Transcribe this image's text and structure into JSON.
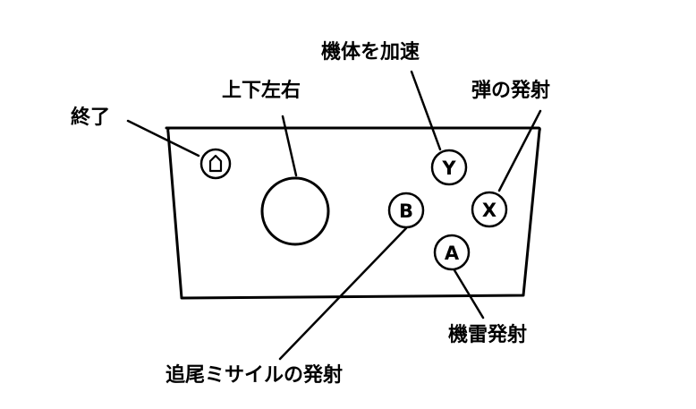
{
  "controller": {
    "buttons": {
      "home_icon": "home-icon",
      "y": "Y",
      "x": "X",
      "b": "B",
      "a": "A"
    }
  },
  "labels": {
    "exit": "終了",
    "directional": "上下左右",
    "accelerate": "機体を加速",
    "fire_bullet": "弾の発射",
    "mine": "機雷発射",
    "homing_missile": "追尾ミサイルの発射"
  },
  "colors": {
    "line": "#000000",
    "background": "#ffffff"
  }
}
